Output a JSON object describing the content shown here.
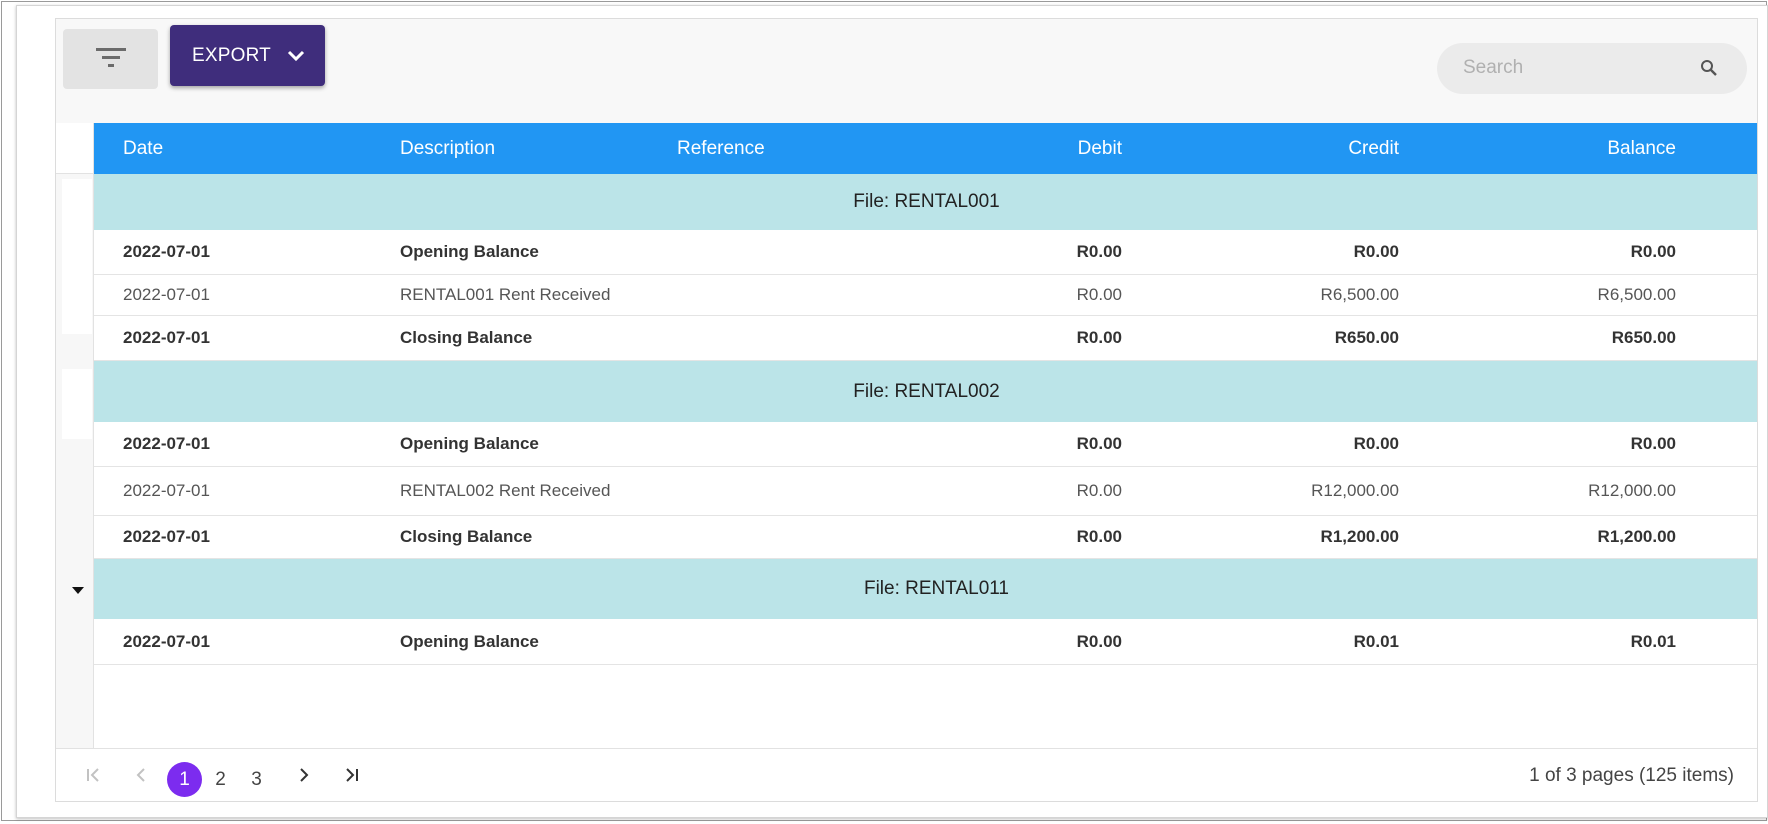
{
  "toolbar": {
    "filter_icon": "filter-icon",
    "export_label": "EXPORT",
    "search_placeholder": "Search",
    "search_value": ""
  },
  "columns": {
    "date": "Date",
    "description": "Description",
    "reference": "Reference",
    "debit": "Debit",
    "credit": "Credit",
    "balance": "Balance"
  },
  "groups": [
    {
      "label": "File: RENTAL001",
      "rows": [
        {
          "date": "2022-07-01",
          "description": "Opening Balance",
          "reference": "",
          "debit": "R0.00",
          "credit": "R0.00",
          "balance": "R0.00"
        },
        {
          "date": "2022-07-01",
          "description": "RENTAL001 Rent Received",
          "reference": "",
          "debit": "R0.00",
          "credit": "R6,500.00",
          "balance": "R6,500.00"
        },
        {
          "date": "2022-07-01",
          "description": "Closing Balance",
          "reference": "",
          "debit": "R0.00",
          "credit": "R650.00",
          "balance": "R650.00"
        }
      ]
    },
    {
      "label": "File: RENTAL002",
      "rows": [
        {
          "date": "2022-07-01",
          "description": "Opening Balance",
          "reference": "",
          "debit": "R0.00",
          "credit": "R0.00",
          "balance": "R0.00"
        },
        {
          "date": "2022-07-01",
          "description": "RENTAL002 Rent Received",
          "reference": "",
          "debit": "R0.00",
          "credit": "R12,000.00",
          "balance": "R12,000.00"
        },
        {
          "date": "2022-07-01",
          "description": "Closing Balance",
          "reference": "",
          "debit": "R0.00",
          "credit": "R1,200.00",
          "balance": "R1,200.00"
        }
      ]
    },
    {
      "label": "File: RENTAL011",
      "rows": [
        {
          "date": "2022-07-01",
          "description": "Opening Balance",
          "reference": "",
          "debit": "R0.00",
          "credit": "R0.01",
          "balance": "R0.01"
        }
      ]
    }
  ],
  "pager": {
    "pages": [
      "1",
      "2",
      "3"
    ],
    "current_page": "1",
    "info": "1 of 3 pages (125 items)"
  },
  "colors": {
    "header_bg": "#2196f3",
    "group_bg": "#bbe4e8",
    "export_bg": "#3f2d7c",
    "active_page": "#7c2cef"
  }
}
